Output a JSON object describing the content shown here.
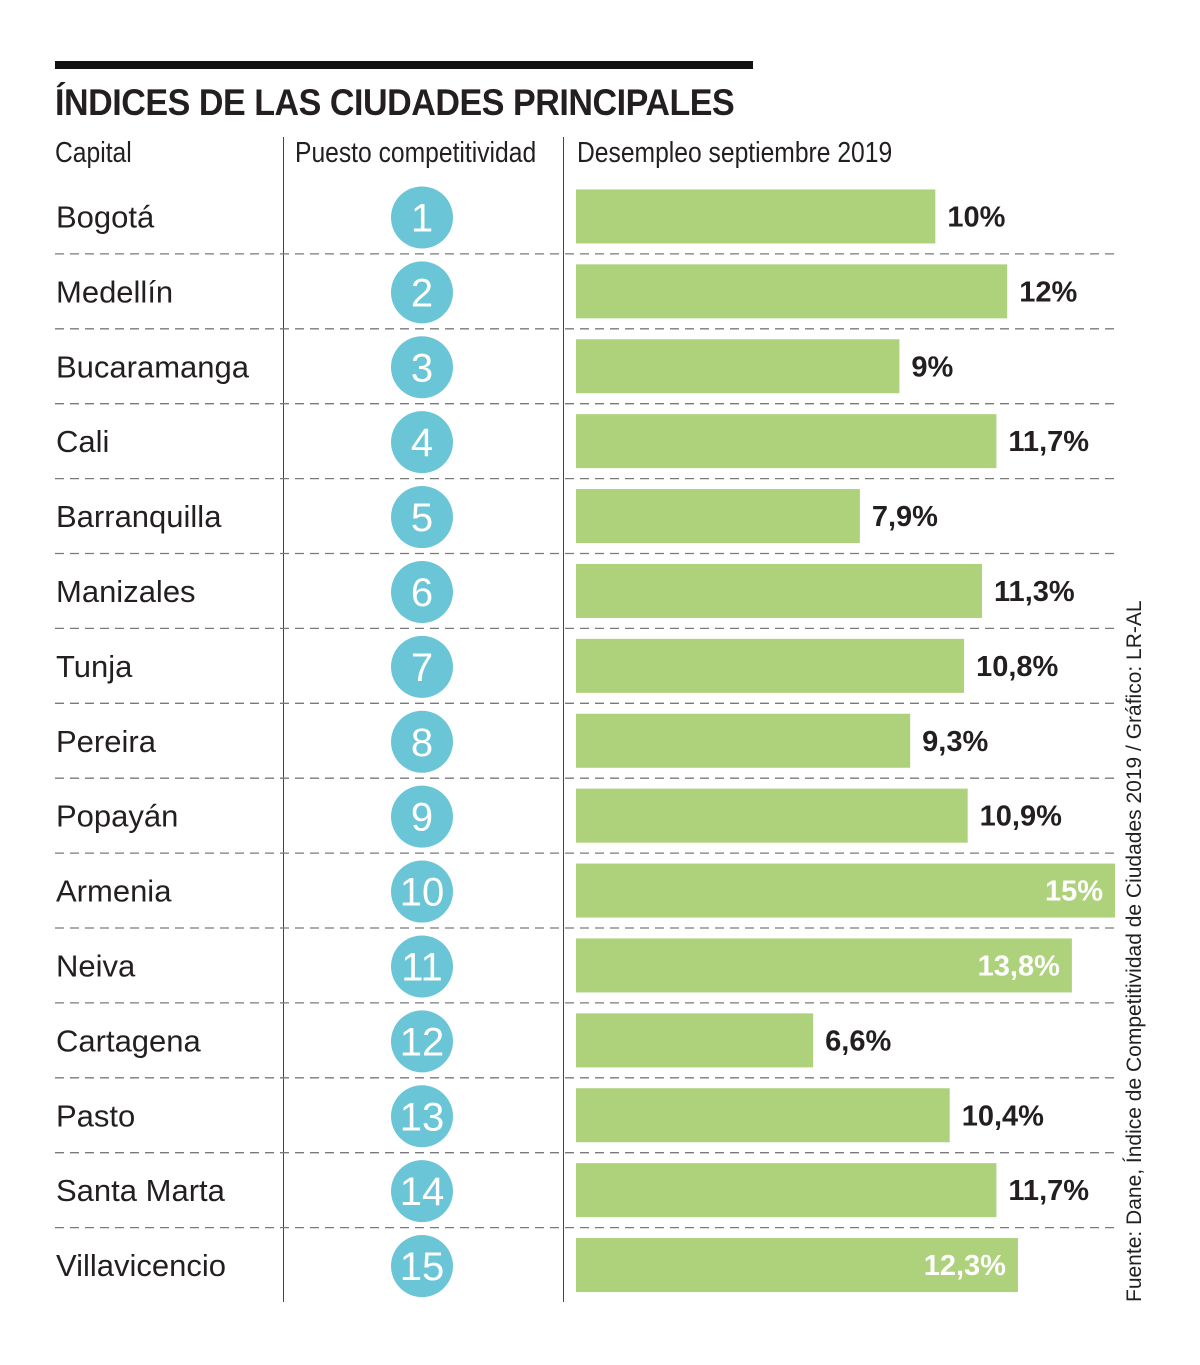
{
  "title": "ÍNDICES DE LAS CIUDADES PRINCIPALES",
  "columns": {
    "capital": "Capital",
    "rank": "Puesto competitividad",
    "unemployment": "Desempleo septiembre 2019"
  },
  "source": "Fuente: Dane, Índice de Competitividad de Ciudades 2019 / Gráfico: LR-AL",
  "colors": {
    "bar": "#aed17b",
    "circle": "#6ac5d7",
    "label_dark": "#231f20",
    "label_light": "#ffffff",
    "text": "#231f20",
    "dash": "#7a7a7a"
  },
  "chart_data": {
    "type": "bar",
    "orientation": "horizontal",
    "title": "ÍNDICES DE LAS CIUDADES PRINCIPALES",
    "xlabel": "Desempleo septiembre 2019",
    "ylabel": "Capital",
    "xlim": [
      0,
      15
    ],
    "categories": [
      "Bogotá",
      "Medellín",
      "Bucaramanga",
      "Cali",
      "Barranquilla",
      "Manizales",
      "Tunja",
      "Pereira",
      "Popayán",
      "Armenia",
      "Neiva",
      "Cartagena",
      "Pasto",
      "Santa Marta",
      "Villavicencio"
    ],
    "ranks": [
      "1",
      "2",
      "3",
      "4",
      "5",
      "6",
      "7",
      "8",
      "9",
      "10",
      "11",
      "12",
      "13",
      "14",
      "15"
    ],
    "values": [
      10,
      12,
      9,
      11.7,
      7.9,
      11.3,
      10.8,
      9.3,
      10.9,
      15,
      13.8,
      6.6,
      10.4,
      11.7,
      12.3
    ],
    "labels": [
      "10%",
      "12%",
      "9%",
      "11,7%",
      "7,9%",
      "11,3%",
      "10,8%",
      "9,3%",
      "10,9%",
      "15%",
      "13,8%",
      "6,6%",
      "10,4%",
      "11,7%",
      "12,3%"
    ],
    "label_inside": [
      false,
      false,
      false,
      false,
      false,
      false,
      false,
      false,
      false,
      true,
      true,
      false,
      false,
      false,
      true
    ]
  }
}
